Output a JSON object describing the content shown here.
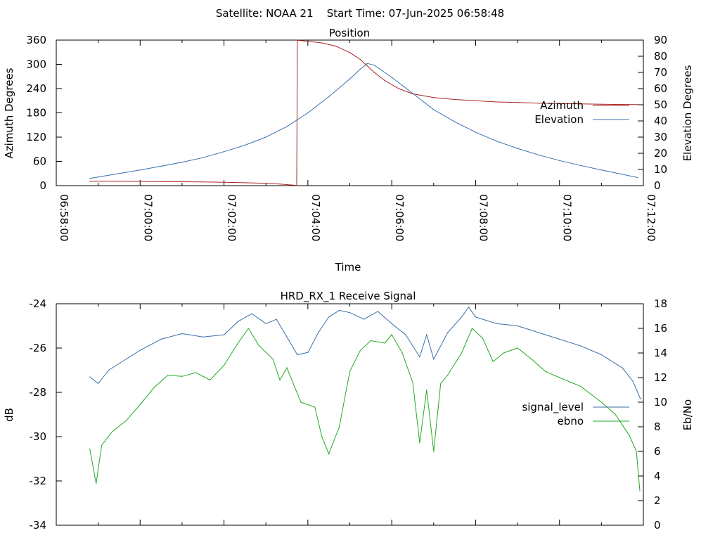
{
  "header": {
    "title": "Satellite: NOAA 21    Start Time: 07-Jun-2025 06:58:48"
  },
  "chart_data": [
    {
      "type": "line",
      "title": "Position",
      "xlabel": "Time",
      "ylabel": "Azimuth Degrees",
      "y2label": "Elevation Degrees",
      "xlim": [
        "06:58:00",
        "07:12:00"
      ],
      "ylim": [
        0,
        360
      ],
      "y2lim": [
        0,
        90
      ],
      "x_ticks": [
        "06:58:00",
        "07:00:00",
        "07:02:00",
        "07:04:00",
        "07:06:00",
        "07:08:00",
        "07:10:00",
        "07:12:00"
      ],
      "y_ticks": [
        0,
        60,
        120,
        180,
        240,
        300,
        360
      ],
      "y2_ticks": [
        0,
        10,
        20,
        30,
        40,
        50,
        60,
        70,
        80,
        90
      ],
      "grid": false,
      "legend_position": "right",
      "series": [
        {
          "name": "Azimuth",
          "axis": "y",
          "color": "#aa2222",
          "points": [
            [
              "06:58:48",
              11
            ],
            [
              "06:59:30",
              10.8
            ],
            [
              "07:00:00",
              10.5
            ],
            [
              "07:00:30",
              10
            ],
            [
              "07:01:00",
              9.5
            ],
            [
              "07:01:30",
              9
            ],
            [
              "07:02:00",
              8.3
            ],
            [
              "07:02:30",
              7.2
            ],
            [
              "07:03:00",
              5.5
            ],
            [
              "07:03:20",
              3.8
            ],
            [
              "07:03:40",
              1
            ],
            [
              "07:03:44",
              0.3
            ],
            [
              "07:03:45",
              359.7
            ],
            [
              "07:04:00",
              357
            ],
            [
              "07:04:20",
              353
            ],
            [
              "07:04:40",
              345
            ],
            [
              "07:05:00",
              329
            ],
            [
              "07:05:15",
              312
            ],
            [
              "07:05:25",
              296
            ],
            [
              "07:05:35",
              280
            ],
            [
              "07:05:50",
              260
            ],
            [
              "07:06:10",
              240
            ],
            [
              "07:06:30",
              227
            ],
            [
              "07:07:00",
              218
            ],
            [
              "07:07:30",
              213
            ],
            [
              "07:08:00",
              210
            ],
            [
              "07:08:30",
              207
            ],
            [
              "07:09:00",
              205.5
            ],
            [
              "07:09:30",
              204
            ],
            [
              "07:10:00",
              203
            ],
            [
              "07:10:30",
              202
            ],
            [
              "07:11:00",
              201.3
            ],
            [
              "07:11:30",
              200.7
            ],
            [
              "07:11:52",
              200.5
            ]
          ]
        },
        {
          "name": "Elevation",
          "axis": "y2",
          "color": "#3a6fa8",
          "points": [
            [
              "06:58:48",
              4.5
            ],
            [
              "06:59:30",
              7.5
            ],
            [
              "07:00:00",
              9.7
            ],
            [
              "07:00:30",
              12
            ],
            [
              "07:01:00",
              14.5
            ],
            [
              "07:01:30",
              17.3
            ],
            [
              "07:02:00",
              21
            ],
            [
              "07:02:30",
              25
            ],
            [
              "07:03:00",
              30
            ],
            [
              "07:03:30",
              36.5
            ],
            [
              "07:04:00",
              45
            ],
            [
              "07:04:30",
              55
            ],
            [
              "07:05:00",
              66
            ],
            [
              "07:05:15",
              72
            ],
            [
              "07:05:25",
              75.5
            ],
            [
              "07:05:35",
              74.5
            ],
            [
              "07:06:00",
              67
            ],
            [
              "07:06:30",
              57
            ],
            [
              "07:07:00",
              47
            ],
            [
              "07:07:30",
              39.5
            ],
            [
              "07:08:00",
              33
            ],
            [
              "07:08:30",
              27.5
            ],
            [
              "07:09:00",
              23
            ],
            [
              "07:09:30",
              19
            ],
            [
              "07:10:00",
              15.5
            ],
            [
              "07:10:30",
              12.5
            ],
            [
              "07:11:00",
              9.7
            ],
            [
              "07:11:30",
              7
            ],
            [
              "07:11:52",
              5
            ]
          ]
        }
      ]
    },
    {
      "type": "line",
      "title": "HRD_RX_1 Receive Signal",
      "ylabel": "dB",
      "y2label": "Eb/No",
      "xlim": [
        "06:58:00",
        "07:12:00"
      ],
      "ylim": [
        -34,
        -24
      ],
      "y2lim": [
        0,
        18
      ],
      "y_ticks": [
        -34,
        -32,
        -30,
        -28,
        -26,
        -24
      ],
      "y2_ticks": [
        0,
        2,
        4,
        6,
        8,
        10,
        12,
        14,
        16,
        18
      ],
      "grid": false,
      "legend_position": "right",
      "series": [
        {
          "name": "signal_level",
          "axis": "y",
          "color": "#3a6fa8",
          "points": [
            [
              "06:58:48",
              -27.3
            ],
            [
              "06:59:00",
              -27.6
            ],
            [
              "06:59:15",
              -27.0
            ],
            [
              "06:59:30",
              -26.7
            ],
            [
              "07:00:00",
              -26.1
            ],
            [
              "07:00:30",
              -25.6
            ],
            [
              "07:01:00",
              -25.35
            ],
            [
              "07:01:30",
              -25.5
            ],
            [
              "07:02:00",
              -25.4
            ],
            [
              "07:02:20",
              -24.8
            ],
            [
              "07:02:40",
              -24.45
            ],
            [
              "07:03:00",
              -24.9
            ],
            [
              "07:03:15",
              -24.7
            ],
            [
              "07:03:30",
              -25.5
            ],
            [
              "07:03:45",
              -26.3
            ],
            [
              "07:04:00",
              -26.2
            ],
            [
              "07:04:15",
              -25.3
            ],
            [
              "07:04:30",
              -24.6
            ],
            [
              "07:04:45",
              -24.3
            ],
            [
              "07:05:00",
              -24.4
            ],
            [
              "07:05:20",
              -24.7
            ],
            [
              "07:05:40",
              -24.35
            ],
            [
              "07:06:00",
              -24.9
            ],
            [
              "07:06:20",
              -25.4
            ],
            [
              "07:06:40",
              -26.4
            ],
            [
              "07:06:50",
              -25.4
            ],
            [
              "07:07:00",
              -26.5
            ],
            [
              "07:07:20",
              -25.3
            ],
            [
              "07:07:40",
              -24.6
            ],
            [
              "07:07:50",
              -24.15
            ],
            [
              "07:08:00",
              -24.6
            ],
            [
              "07:08:30",
              -24.9
            ],
            [
              "07:09:00",
              -25.0
            ],
            [
              "07:09:30",
              -25.3
            ],
            [
              "07:10:00",
              -25.6
            ],
            [
              "07:10:30",
              -25.9
            ],
            [
              "07:11:00",
              -26.3
            ],
            [
              "07:11:30",
              -26.9
            ],
            [
              "07:11:45",
              -27.5
            ],
            [
              "07:11:56",
              -28.3
            ]
          ]
        },
        {
          "name": "ebno",
          "axis": "y2",
          "color": "#22aa22",
          "points": [
            [
              "06:58:48",
              6.2
            ],
            [
              "06:58:57",
              3.4
            ],
            [
              "06:59:05",
              6.5
            ],
            [
              "06:59:20",
              7.6
            ],
            [
              "06:59:40",
              8.5
            ],
            [
              "07:00:00",
              9.8
            ],
            [
              "07:00:20",
              11.2
            ],
            [
              "07:00:40",
              12.2
            ],
            [
              "07:01:00",
              12.1
            ],
            [
              "07:01:20",
              12.4
            ],
            [
              "07:01:40",
              11.8
            ],
            [
              "07:02:00",
              13.0
            ],
            [
              "07:02:20",
              14.8
            ],
            [
              "07:02:35",
              16.0
            ],
            [
              "07:02:50",
              14.6
            ],
            [
              "07:03:10",
              13.5
            ],
            [
              "07:03:20",
              11.8
            ],
            [
              "07:03:30",
              12.8
            ],
            [
              "07:03:50",
              10.0
            ],
            [
              "07:04:10",
              9.6
            ],
            [
              "07:04:20",
              7.2
            ],
            [
              "07:04:30",
              5.8
            ],
            [
              "07:04:45",
              8.0
            ],
            [
              "07:05:00",
              12.5
            ],
            [
              "07:05:15",
              14.2
            ],
            [
              "07:05:30",
              15.0
            ],
            [
              "07:05:50",
              14.8
            ],
            [
              "07:06:00",
              15.5
            ],
            [
              "07:06:15",
              14.0
            ],
            [
              "07:06:30",
              11.6
            ],
            [
              "07:06:40",
              6.7
            ],
            [
              "07:06:50",
              11.0
            ],
            [
              "07:07:00",
              6.0
            ],
            [
              "07:07:10",
              11.5
            ],
            [
              "07:07:20",
              12.2
            ],
            [
              "07:07:40",
              14.0
            ],
            [
              "07:07:55",
              16.0
            ],
            [
              "07:08:10",
              15.2
            ],
            [
              "07:08:25",
              13.3
            ],
            [
              "07:08:40",
              14.0
            ],
            [
              "07:09:00",
              14.4
            ],
            [
              "07:09:20",
              13.5
            ],
            [
              "07:09:40",
              12.5
            ],
            [
              "07:10:00",
              12.0
            ],
            [
              "07:10:30",
              11.3
            ],
            [
              "07:11:00",
              10.0
            ],
            [
              "07:11:20",
              9.0
            ],
            [
              "07:11:40",
              7.3
            ],
            [
              "07:11:50",
              6.0
            ],
            [
              "07:11:55",
              2.8
            ]
          ]
        }
      ]
    }
  ]
}
